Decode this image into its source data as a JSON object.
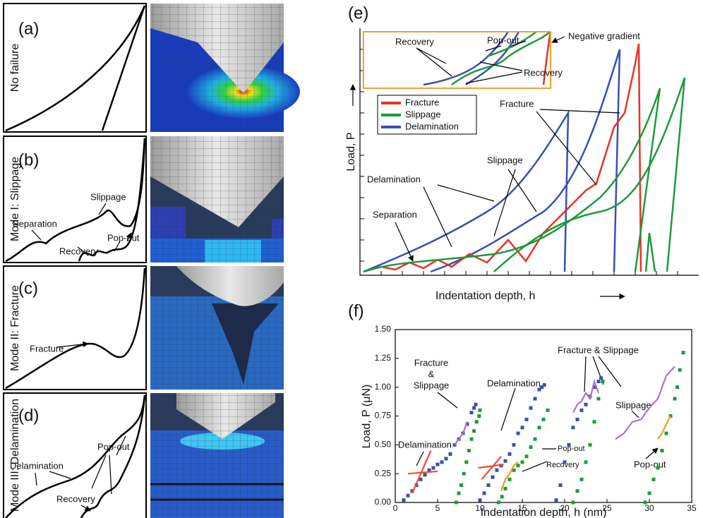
{
  "panels": {
    "a": {
      "label": "(a)",
      "mode": "No failure"
    },
    "b": {
      "label": "(b)",
      "mode": "Mode I: Slippage",
      "notes": [
        "Slippage",
        "Separation",
        "Recovery",
        "Pop-out"
      ]
    },
    "c": {
      "label": "(c)",
      "mode": "Mode II: Fracture",
      "notes": [
        "Fracture"
      ]
    },
    "d": {
      "label": "(d)",
      "mode": "Mode III: Delamination",
      "notes": [
        "Pop-out",
        "Delamination",
        "Recovery"
      ]
    },
    "e": {
      "label": "(e)",
      "inset_notes": [
        "Recovery",
        "Pop-out",
        "Negative gradient",
        "Recovery"
      ],
      "legend": [
        "Fracture",
        "Slippage",
        "Delamination"
      ],
      "notes": [
        "Fracture",
        "Slippage",
        "Delamination",
        "Separation"
      ],
      "y_label": "Load, P",
      "x_label": "Indentation depth, h"
    }
  },
  "chart_data": {
    "type": "scatter",
    "title": "(f)",
    "x_label": "Indentation depth, h (nm)",
    "y_label": "Load, P (μN)",
    "xlim": [
      0,
      35
    ],
    "xticks": [
      0,
      5,
      10,
      15,
      20,
      25,
      30,
      35
    ],
    "ylim": [
      0,
      1.5
    ],
    "yticks": [
      {
        "value": 0,
        "label": "0.00"
      },
      {
        "value": 0.25,
        "label": "0.25"
      },
      {
        "value": 0.5,
        "label": "0.50"
      },
      {
        "value": 0.75,
        "label": "0.75"
      },
      {
        "value": 1.0,
        "label": "1.00"
      },
      {
        "value": 1.25,
        "label": "1.25"
      },
      {
        "value": 1.5,
        "label": "1.50"
      }
    ],
    "annotations": [
      [
        "Fracture",
        "&",
        "Slippage"
      ],
      "Delamination",
      "Delamination",
      "Pop-out",
      "Recovery",
      "Fracture & Slippage",
      "Slippage",
      "Pop-out"
    ],
    "series": [
      {
        "color": "#3a4fb0",
        "marker": "square",
        "x": [
          1,
          1.5,
          2,
          2.5,
          3,
          3.5,
          4,
          4.5,
          5,
          5.5,
          6,
          6.5,
          7,
          7.5,
          8,
          8.5,
          9,
          9.3,
          9.5
        ],
        "values": [
          0.02,
          0.06,
          0.1,
          0.15,
          0.2,
          0.24,
          0.28,
          0.3,
          0.33,
          0.35,
          0.38,
          0.42,
          0.5,
          0.55,
          0.6,
          0.68,
          0.78,
          0.82,
          0.85
        ]
      },
      {
        "color": "#1e9a3c",
        "marker": "square",
        "x": [
          7.2,
          7.5,
          7.8,
          8.1,
          8.4,
          8.7,
          9,
          9.3,
          9.6,
          9.9,
          10
        ],
        "values": [
          0,
          0.08,
          0.15,
          0.25,
          0.35,
          0.45,
          0.55,
          0.62,
          0.7,
          0.75,
          0.8
        ]
      },
      {
        "color": "#3a4fb0",
        "marker": "square",
        "x": [
          10,
          10.5,
          11,
          11.5,
          12,
          12.5,
          13,
          13.5,
          14,
          14.5,
          15,
          15.5,
          16,
          16.5,
          17,
          17.3,
          17.6
        ],
        "values": [
          0.02,
          0.08,
          0.15,
          0.22,
          0.28,
          0.32,
          0.36,
          0.42,
          0.5,
          0.6,
          0.65,
          0.72,
          0.82,
          0.9,
          0.98,
          1.0,
          1.02
        ]
      },
      {
        "color": "#1e9a3c",
        "marker": "square",
        "x": [
          12.2,
          12.6,
          13,
          13.5,
          14,
          14.5,
          15,
          15.5,
          16,
          16.5,
          17,
          17.5,
          18
        ],
        "values": [
          0,
          0.05,
          0.12,
          0.2,
          0.28,
          0.32,
          0.35,
          0.4,
          0.48,
          0.55,
          0.65,
          0.72,
          0.8
        ]
      },
      {
        "color": "#3a4fb0",
        "marker": "square",
        "x": [
          19,
          19.5,
          20,
          20.5,
          21,
          21.5,
          22,
          22.5,
          23,
          23.5,
          24,
          24.3
        ],
        "values": [
          0.02,
          0.15,
          0.35,
          0.5,
          0.65,
          0.72,
          0.8,
          0.85,
          0.92,
          1.0,
          1.05,
          1.08
        ]
      },
      {
        "color": "#1e9a3c",
        "marker": "square",
        "x": [
          21,
          21.5,
          22,
          22.5,
          23,
          23.5,
          24,
          24.5
        ],
        "values": [
          0,
          0.1,
          0.2,
          0.35,
          0.5,
          0.7,
          0.9,
          1.05
        ]
      },
      {
        "color": "#1e9a3c",
        "marker": "square",
        "x": [
          29.5,
          30,
          30.5,
          31,
          31.5,
          32,
          32.5,
          33,
          33.3,
          33.6,
          34
        ],
        "values": [
          0,
          0.08,
          0.2,
          0.3,
          0.45,
          0.6,
          0.75,
          0.9,
          1.0,
          1.15,
          1.3
        ]
      },
      {
        "color": "#b070d0",
        "marker": "line",
        "x": [
          7,
          7.5,
          8,
          8.5
        ],
        "values": [
          0.5,
          0.55,
          0.6,
          0.7
        ]
      },
      {
        "color": "#b070d0",
        "marker": "line",
        "x": [
          21,
          21.5,
          22,
          22.5,
          23,
          23.5,
          24
        ],
        "values": [
          0.78,
          0.85,
          0.88,
          0.95,
          0.9,
          1.05,
          0.95
        ]
      },
      {
        "color": "#b070d0",
        "marker": "line",
        "x": [
          26,
          27,
          28,
          29,
          30,
          31,
          32,
          33
        ],
        "values": [
          0.55,
          0.6,
          0.7,
          0.72,
          0.82,
          0.9,
          1.1,
          1.18
        ]
      },
      {
        "color": "#e8a020",
        "marker": "line",
        "x": [
          12.5,
          13,
          13.5,
          14,
          14.5
        ],
        "values": [
          0.1,
          0.2,
          0.25,
          0.32,
          0.35
        ]
      },
      {
        "color": "#e8a020",
        "marker": "line",
        "x": [
          31,
          31.5,
          32,
          32.5
        ],
        "values": [
          0.55,
          0.6,
          0.68,
          0.75
        ]
      },
      {
        "color": "#f05030",
        "marker": "line",
        "x": [
          2,
          4.2
        ],
        "values": [
          0.08,
          0.45
        ]
      },
      {
        "color": "#f05030",
        "marker": "line",
        "x": [
          1.5,
          5
        ],
        "values": [
          0.25,
          0.27
        ]
      },
      {
        "color": "#f05030",
        "marker": "line",
        "x": [
          10.2,
          12.5
        ],
        "values": [
          0.2,
          0.4
        ]
      },
      {
        "color": "#f05030",
        "marker": "line",
        "x": [
          9.8,
          12.8
        ],
        "values": [
          0.3,
          0.33
        ]
      }
    ]
  }
}
